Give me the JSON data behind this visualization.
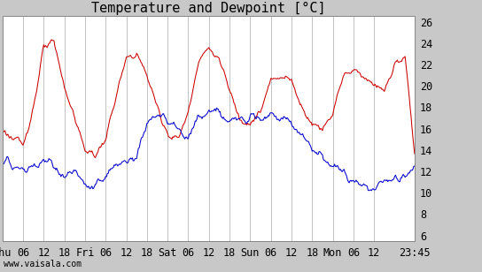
{
  "title": "Temperature and Dewpoint [°C]",
  "ylabel_right_ticks": [
    6,
    8,
    10,
    12,
    14,
    16,
    18,
    20,
    22,
    24,
    26
  ],
  "ylim": [
    5.5,
    26.5
  ],
  "x_tick_labels": [
    "Thu",
    "06",
    "12",
    "18",
    "Fri",
    "06",
    "12",
    "18",
    "Sat",
    "06",
    "12",
    "18",
    "Sun",
    "06",
    "12",
    "18",
    "Mon",
    "06",
    "12",
    "23:45"
  ],
  "x_tick_positions": [
    0,
    6,
    12,
    18,
    24,
    30,
    36,
    42,
    48,
    54,
    60,
    66,
    72,
    78,
    84,
    90,
    96,
    102,
    108,
    119.75
  ],
  "xlim": [
    0,
    119.75
  ],
  "temp_color": "#cc0000",
  "dew_color": "#0000cc",
  "bg_color": "#c8c8c8",
  "plot_bg_color": "#ffffff",
  "grid_color": "#aaaaaa",
  "title_fontsize": 11,
  "tick_fontsize": 8.5,
  "watermark": "www.vaisala.com",
  "temp_keypoints_t": [
    0,
    3,
    6,
    9,
    12,
    15,
    18,
    21,
    24,
    27,
    30,
    33,
    36,
    39,
    42,
    45,
    48,
    51,
    54,
    57,
    60,
    63,
    66,
    69,
    72,
    75,
    78,
    81,
    84,
    87,
    90,
    93,
    96,
    99,
    102,
    105,
    108,
    111,
    114,
    117,
    119.75
  ],
  "temp_keypoints_v": [
    16.0,
    15.0,
    14.5,
    18.0,
    23.5,
    24.0,
    20.0,
    17.0,
    14.0,
    13.5,
    15.0,
    19.0,
    22.5,
    23.0,
    21.0,
    18.0,
    15.5,
    15.0,
    17.5,
    22.5,
    23.5,
    22.5,
    19.5,
    17.0,
    16.5,
    17.5,
    20.5,
    21.0,
    20.5,
    18.0,
    16.5,
    16.0,
    17.5,
    21.0,
    21.5,
    21.0,
    20.0,
    19.5,
    22.0,
    22.5,
    14.0
  ],
  "dew_keypoints_t": [
    0,
    3,
    6,
    9,
    12,
    15,
    18,
    21,
    24,
    27,
    30,
    33,
    36,
    39,
    42,
    45,
    48,
    51,
    54,
    57,
    60,
    63,
    66,
    69,
    72,
    75,
    78,
    81,
    84,
    87,
    90,
    93,
    96,
    99,
    102,
    105,
    108,
    111,
    114,
    117,
    119.75
  ],
  "dew_keypoints_v": [
    13.0,
    12.5,
    12.0,
    12.5,
    13.0,
    12.5,
    11.5,
    12.0,
    10.5,
    10.5,
    11.5,
    12.5,
    13.0,
    13.5,
    16.5,
    17.5,
    16.5,
    16.0,
    15.0,
    17.0,
    17.5,
    17.5,
    16.5,
    17.0,
    17.5,
    17.0,
    17.5,
    17.0,
    16.5,
    15.5,
    14.0,
    13.5,
    12.5,
    12.0,
    11.0,
    10.5,
    10.5,
    11.0,
    11.5,
    11.5,
    12.5
  ]
}
